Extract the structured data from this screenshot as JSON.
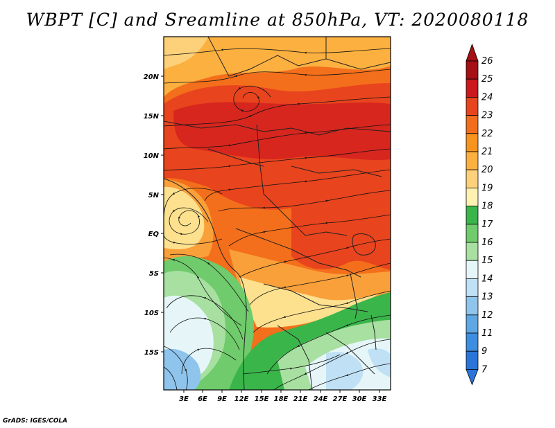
{
  "title": "WBPT [C] and Sreamline at 850hPa, VT: 2020080118",
  "credit": "GrADS: IGES/COLA",
  "map": {
    "lat_ticks": [
      "20N",
      "15N",
      "10N",
      "5N",
      "EQ",
      "5S",
      "10S",
      "15S"
    ],
    "lon_ticks": [
      "3E",
      "6E",
      "9E",
      "12E",
      "15E",
      "18E",
      "21E",
      "24E",
      "27E",
      "30E",
      "33E"
    ],
    "region_colors": {
      "north_band": "#fbb040",
      "hot_core": "#e8441e",
      "deep_red": "#d7261e",
      "warm_orange": "#f46f1b",
      "mid_orange": "#faa03a",
      "light_yellow": "#fde18f",
      "pale_yellow": "#fff2b0",
      "green_dark": "#3ab54a",
      "green_mid": "#6fcb6b",
      "green_light": "#a7e0a0",
      "very_light": "#e6f6f8",
      "light_blue": "#bfe0f5",
      "blue": "#8fc4ec"
    }
  },
  "colorbar": {
    "labels": [
      "26",
      "25",
      "24",
      "23",
      "22",
      "21",
      "20",
      "19",
      "18",
      "17",
      "16",
      "15",
      "14",
      "13",
      "12",
      "11",
      "9",
      "7"
    ],
    "colors": [
      "#a50f15",
      "#cb181d",
      "#e8441e",
      "#f26d1d",
      "#f7941d",
      "#fbb040",
      "#fdd17a",
      "#fff2b0",
      "#3ab54a",
      "#6fcb6b",
      "#a7e0a0",
      "#e6f6f8",
      "#bfe0f5",
      "#8fc4ec",
      "#5ea7e3",
      "#3d8ee0",
      "#2a74da"
    ],
    "top_arrow_color": "#a50f15",
    "bottom_arrow_color": "#2a74da"
  }
}
